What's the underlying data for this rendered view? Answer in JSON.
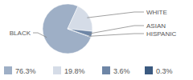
{
  "chart_data": {
    "type": "pie",
    "categories": [
      "BLACK",
      "WHITE",
      "ASIAN",
      "HISPANIC"
    ],
    "values": [
      76.3,
      19.8,
      3.6,
      0.3
    ],
    "value_labels": [
      "76.3%",
      "19.8%",
      "3.6%",
      "0.3%"
    ],
    "colors": [
      "#9eafc6",
      "#d5dce7",
      "#6e86a6",
      "#3b5a80"
    ]
  }
}
